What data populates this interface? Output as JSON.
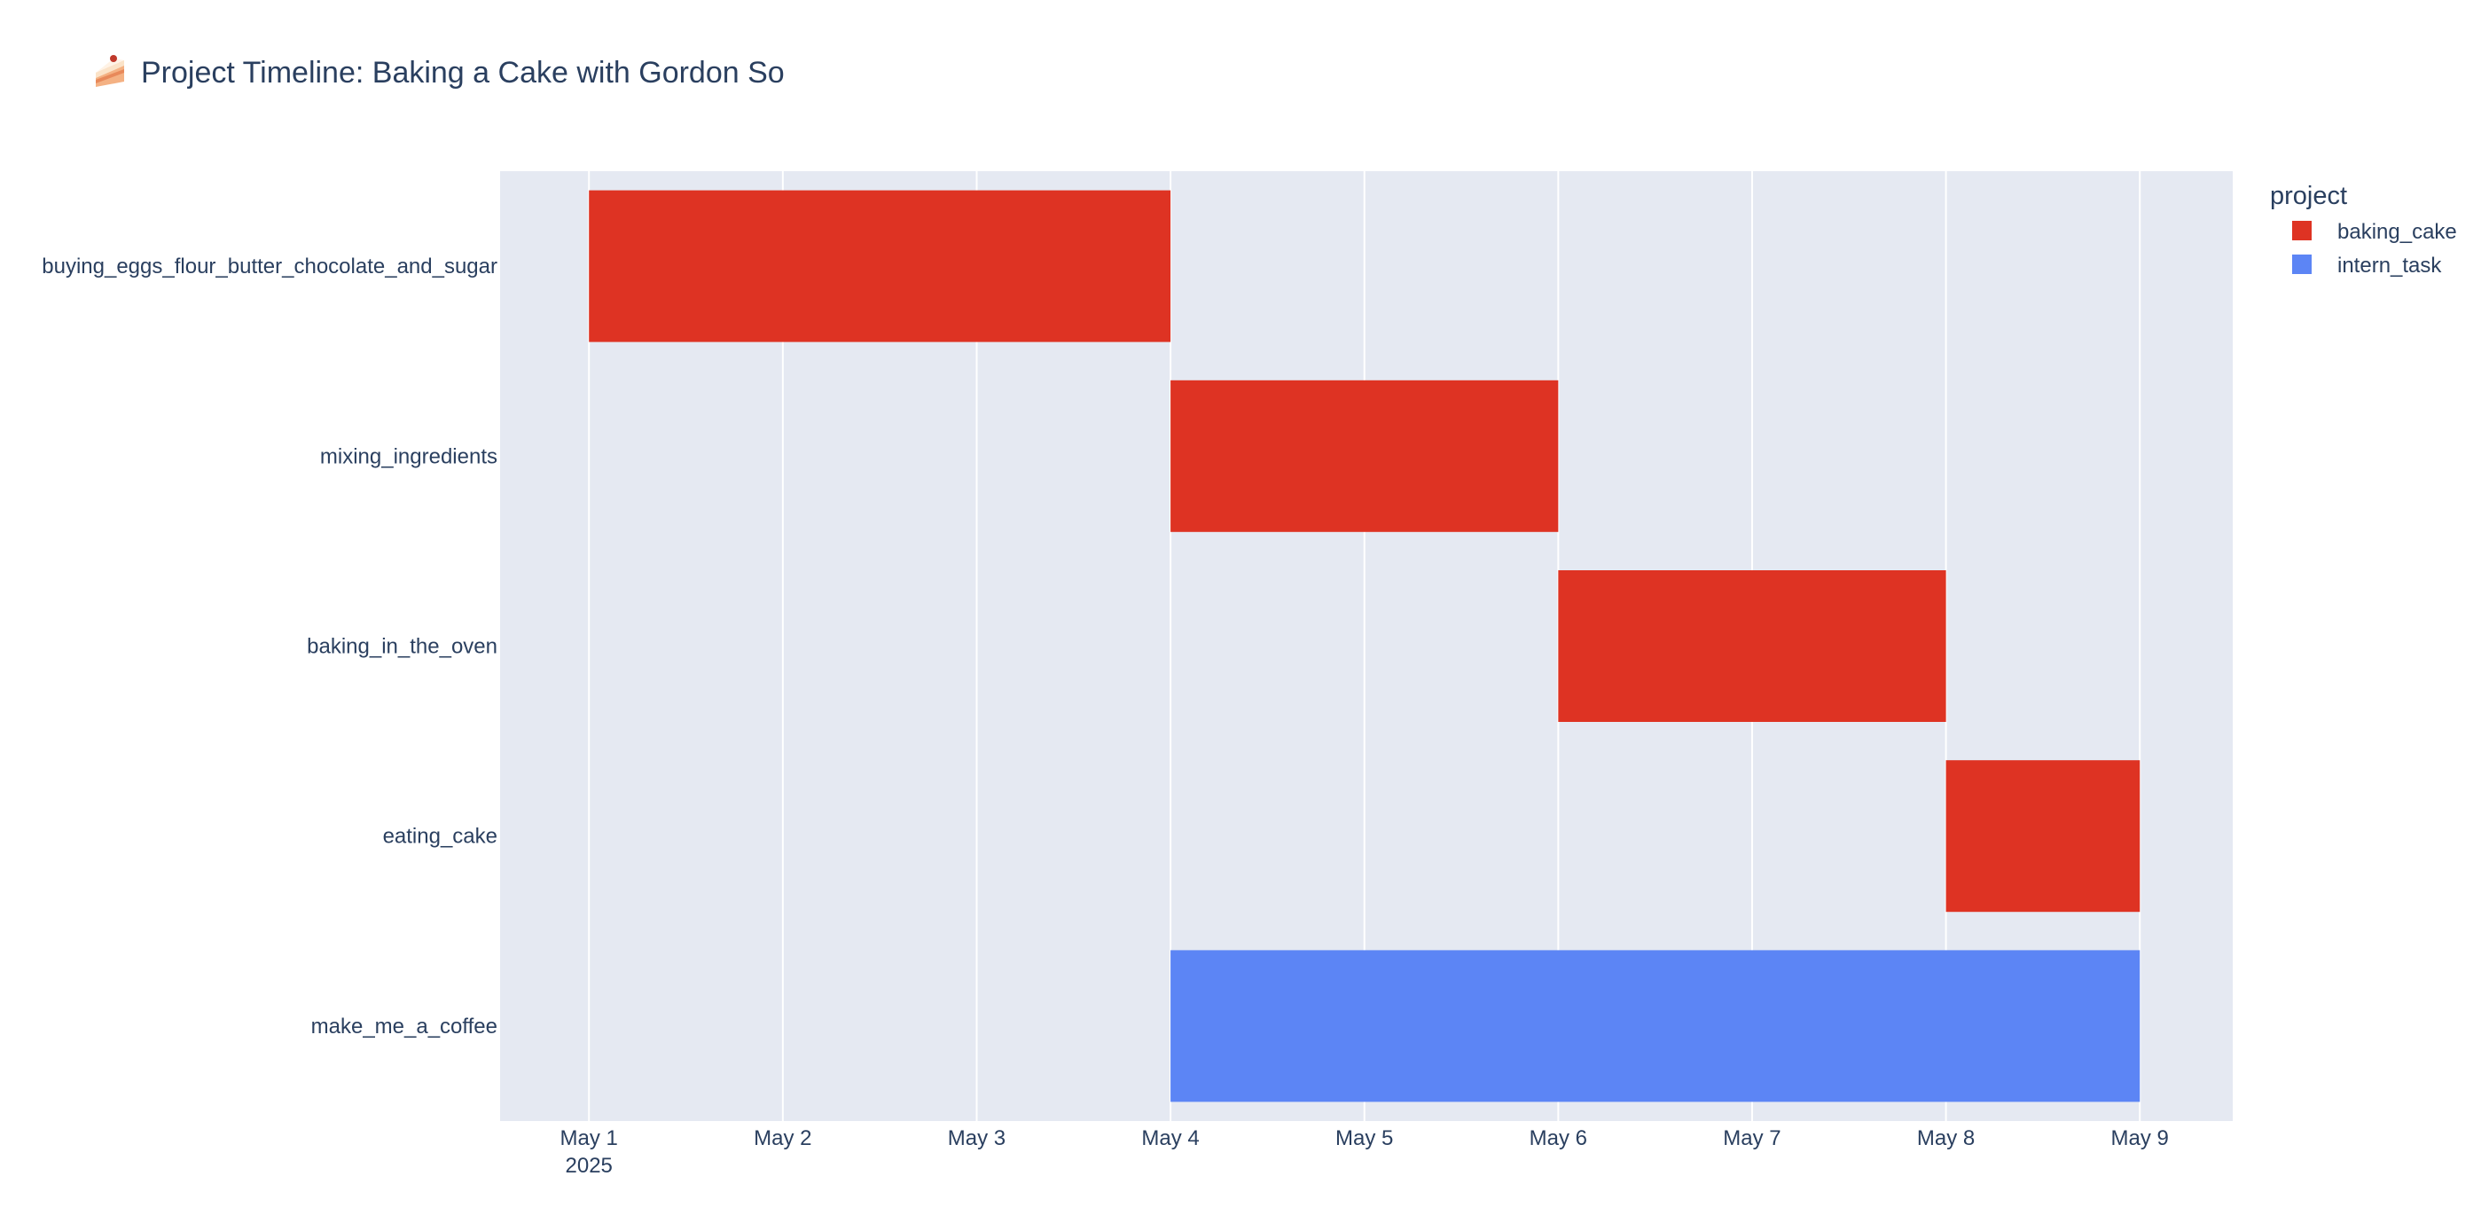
{
  "chart_data": {
    "type": "gantt",
    "title_icon": "cake-slice-icon",
    "title": "Project Timeline: Baking a Cake with Gordon So",
    "x_tick_labels": [
      "May 1",
      "May 2",
      "May 3",
      "May 4",
      "May 5",
      "May 6",
      "May 7",
      "May 8",
      "May 9"
    ],
    "x_year_label": "2025",
    "x_range": [
      "2025-04-30T13:00",
      "2025-05-09T11:30"
    ],
    "grid": true,
    "legend_title": "project",
    "legend_position": "top-right",
    "series": [
      {
        "name": "baking_cake",
        "color": "#DE3323"
      },
      {
        "name": "intern_task",
        "color": "#5C85F5"
      }
    ],
    "tasks": [
      {
        "task": "buying_eggs_flour_butter_chocolate_and_sugar",
        "start": "2025-05-01",
        "end": "2025-05-04",
        "project": "baking_cake"
      },
      {
        "task": "mixing_ingredients",
        "start": "2025-05-04",
        "end": "2025-05-06",
        "project": "baking_cake"
      },
      {
        "task": "baking_in_the_oven",
        "start": "2025-05-06",
        "end": "2025-05-08",
        "project": "baking_cake"
      },
      {
        "task": "eating_cake",
        "start": "2025-05-08",
        "end": "2025-05-09",
        "project": "baking_cake"
      },
      {
        "task": "make_me_a_coffee",
        "start": "2025-05-04",
        "end": "2025-05-09",
        "project": "intern_task"
      }
    ],
    "colors": {
      "plot_background": "#E5E9F2",
      "gridline": "#FFFFFF",
      "text": "#2A3F5F"
    }
  }
}
